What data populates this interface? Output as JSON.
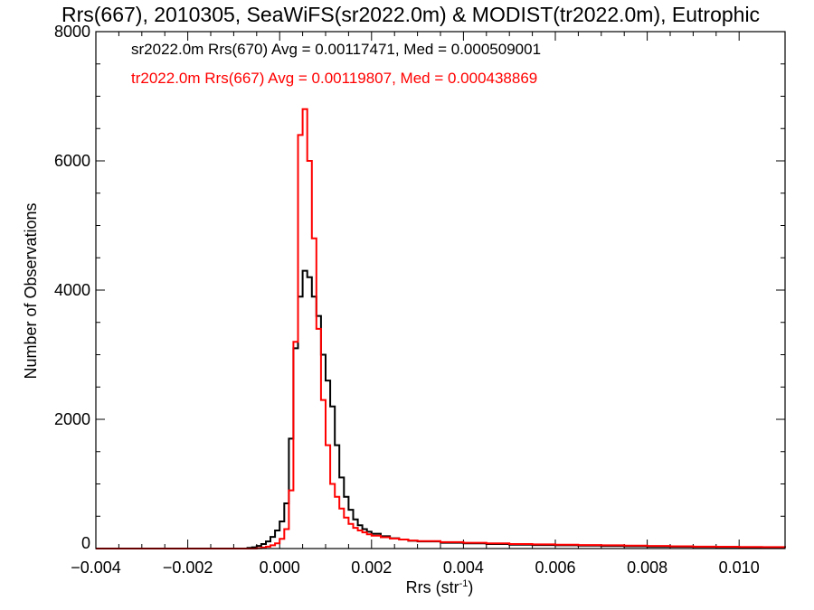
{
  "chart_data": {
    "type": "step",
    "title": "Rrs(667), 2010305, SeaWiFS(sr2022.0m) & MODIST(tr2022.0m), Eutrophic",
    "xlabel": "Rrs (str",
    "xlabel_sup": "-1",
    "xlabel_close": ")",
    "ylabel": "Number of Observations",
    "xlim": [
      -0.004,
      0.011
    ],
    "ylim": [
      0,
      8000
    ],
    "xticks": [
      -0.004,
      -0.002,
      0.0,
      0.002,
      0.004,
      0.006,
      0.008,
      0.01
    ],
    "xtick_labels": [
      "−0.004",
      "−0.002",
      "0.000",
      "0.002",
      "0.004",
      "0.006",
      "0.008",
      "0.010"
    ],
    "yticks": [
      0,
      2000,
      4000,
      6000,
      8000
    ],
    "ytick_labels": [
      "0",
      "2000",
      "4000",
      "6000",
      "8000"
    ],
    "bin_width": 0.0001,
    "legend_placement": "top-left",
    "series": [
      {
        "name": "sr2022.0m Rrs(670)",
        "annotation": "sr2022.0m Rrs(670) Avg = 0.00117471, Med = 0.000509001",
        "color": "#000000",
        "points": [
          [
            -0.004,
            0
          ],
          [
            -0.0008,
            0
          ],
          [
            -0.0007,
            10
          ],
          [
            -0.0006,
            20
          ],
          [
            -0.0005,
            40
          ],
          [
            -0.0004,
            70
          ],
          [
            -0.0003,
            110
          ],
          [
            -0.0002,
            180
          ],
          [
            -0.0001,
            280
          ],
          [
            0.0,
            420
          ],
          [
            0.0001,
            700
          ],
          [
            0.0002,
            1700
          ],
          [
            0.0003,
            3100
          ],
          [
            0.0004,
            3900
          ],
          [
            0.0005,
            4300
          ],
          [
            0.0006,
            4200
          ],
          [
            0.0007,
            3900
          ],
          [
            0.0008,
            3600
          ],
          [
            0.0009,
            3000
          ],
          [
            0.001,
            2600
          ],
          [
            0.0011,
            2200
          ],
          [
            0.0012,
            1600
          ],
          [
            0.0013,
            1100
          ],
          [
            0.0014,
            800
          ],
          [
            0.0015,
            600
          ],
          [
            0.0016,
            450
          ],
          [
            0.0017,
            360
          ],
          [
            0.0018,
            300
          ],
          [
            0.0019,
            260
          ],
          [
            0.002,
            230
          ],
          [
            0.0022,
            190
          ],
          [
            0.0024,
            160
          ],
          [
            0.0026,
            140
          ],
          [
            0.0028,
            120
          ],
          [
            0.003,
            110
          ],
          [
            0.0035,
            90
          ],
          [
            0.004,
            80
          ],
          [
            0.0045,
            70
          ],
          [
            0.005,
            60
          ],
          [
            0.0055,
            55
          ],
          [
            0.006,
            50
          ],
          [
            0.0065,
            45
          ],
          [
            0.007,
            40
          ],
          [
            0.0075,
            35
          ],
          [
            0.008,
            30
          ],
          [
            0.0085,
            28
          ],
          [
            0.009,
            25
          ],
          [
            0.0095,
            22
          ],
          [
            0.01,
            20
          ],
          [
            0.0105,
            18
          ],
          [
            0.011,
            15
          ]
        ]
      },
      {
        "name": "tr2022.0m Rrs(667)",
        "annotation": "tr2022.0m Rrs(667) Avg = 0.00119807, Med = 0.000438869",
        "color": "#ff0000",
        "points": [
          [
            -0.004,
            0
          ],
          [
            -0.0006,
            0
          ],
          [
            -0.0005,
            5
          ],
          [
            -0.0004,
            15
          ],
          [
            -0.0003,
            30
          ],
          [
            -0.0002,
            50
          ],
          [
            -0.0001,
            80
          ],
          [
            0.0,
            150
          ],
          [
            0.0001,
            300
          ],
          [
            0.0002,
            900
          ],
          [
            0.0003,
            3200
          ],
          [
            0.0004,
            6400
          ],
          [
            0.0005,
            6800
          ],
          [
            0.0006,
            6000
          ],
          [
            0.0007,
            4800
          ],
          [
            0.0008,
            3400
          ],
          [
            0.0009,
            2300
          ],
          [
            0.001,
            1600
          ],
          [
            0.0011,
            1000
          ],
          [
            0.0012,
            800
          ],
          [
            0.0013,
            620
          ],
          [
            0.0014,
            480
          ],
          [
            0.0015,
            380
          ],
          [
            0.0016,
            320
          ],
          [
            0.0017,
            280
          ],
          [
            0.0018,
            250
          ],
          [
            0.0019,
            220
          ],
          [
            0.002,
            200
          ],
          [
            0.0022,
            175
          ],
          [
            0.0024,
            155
          ],
          [
            0.0026,
            140
          ],
          [
            0.0028,
            125
          ],
          [
            0.003,
            115
          ],
          [
            0.0035,
            100
          ],
          [
            0.004,
            90
          ],
          [
            0.0045,
            80
          ],
          [
            0.005,
            70
          ],
          [
            0.0055,
            65
          ],
          [
            0.006,
            60
          ],
          [
            0.0065,
            55
          ],
          [
            0.007,
            50
          ],
          [
            0.0075,
            45
          ],
          [
            0.008,
            40
          ],
          [
            0.0085,
            35
          ],
          [
            0.009,
            30
          ],
          [
            0.0095,
            28
          ],
          [
            0.01,
            25
          ],
          [
            0.0105,
            22
          ],
          [
            0.011,
            20
          ]
        ]
      }
    ]
  }
}
